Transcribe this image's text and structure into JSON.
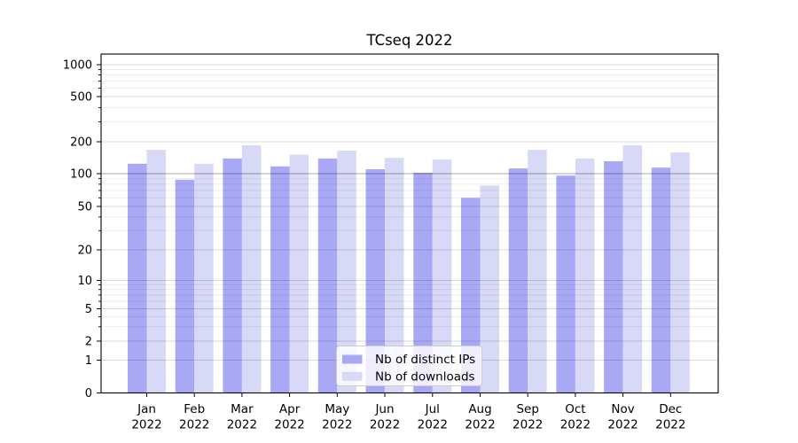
{
  "figure": {
    "background": "#ffffff"
  },
  "chart_data": {
    "type": "bar",
    "title": "TCseq 2022",
    "categories": [
      "Jan",
      "Feb",
      "Mar",
      "Apr",
      "May",
      "Jun",
      "Jul",
      "Aug",
      "Sep",
      "Oct",
      "Nov",
      "Dec"
    ],
    "year": "2022",
    "series": [
      {
        "name": "Nb of distinct IPs",
        "color": "#a8a8f5",
        "values": [
          124,
          88,
          139,
          117,
          139,
          110,
          102,
          60,
          112,
          96,
          131,
          114
        ]
      },
      {
        "name": "Nb of downloads",
        "color": "#d8d8f7",
        "values": [
          168,
          124,
          185,
          151,
          165,
          141,
          136,
          78,
          168,
          139,
          185,
          159
        ]
      }
    ],
    "y_axis": {
      "scale": "log-with-zero",
      "tick_values": [
        0,
        1,
        2,
        5,
        10,
        20,
        50,
        100,
        200,
        500,
        1000
      ],
      "tick_labels": [
        "0",
        "1",
        "2",
        "5",
        "10",
        "20",
        "50",
        "100",
        "200",
        "500",
        "1000"
      ],
      "range": [
        0,
        1000
      ],
      "emphasized_gridline": 100
    },
    "x_axis": {
      "tick_label_line2": "2022"
    },
    "legend": {
      "position": "lower-center",
      "entries": [
        "Nb of distinct IPs",
        "Nb of downloads"
      ]
    },
    "grid": "on",
    "grid_colors": {
      "minor": "rgba(0,0,0,0.065)",
      "major": "rgba(0,0,0,0.15)",
      "emphasized": "rgba(0,0,0,0.34)"
    }
  }
}
